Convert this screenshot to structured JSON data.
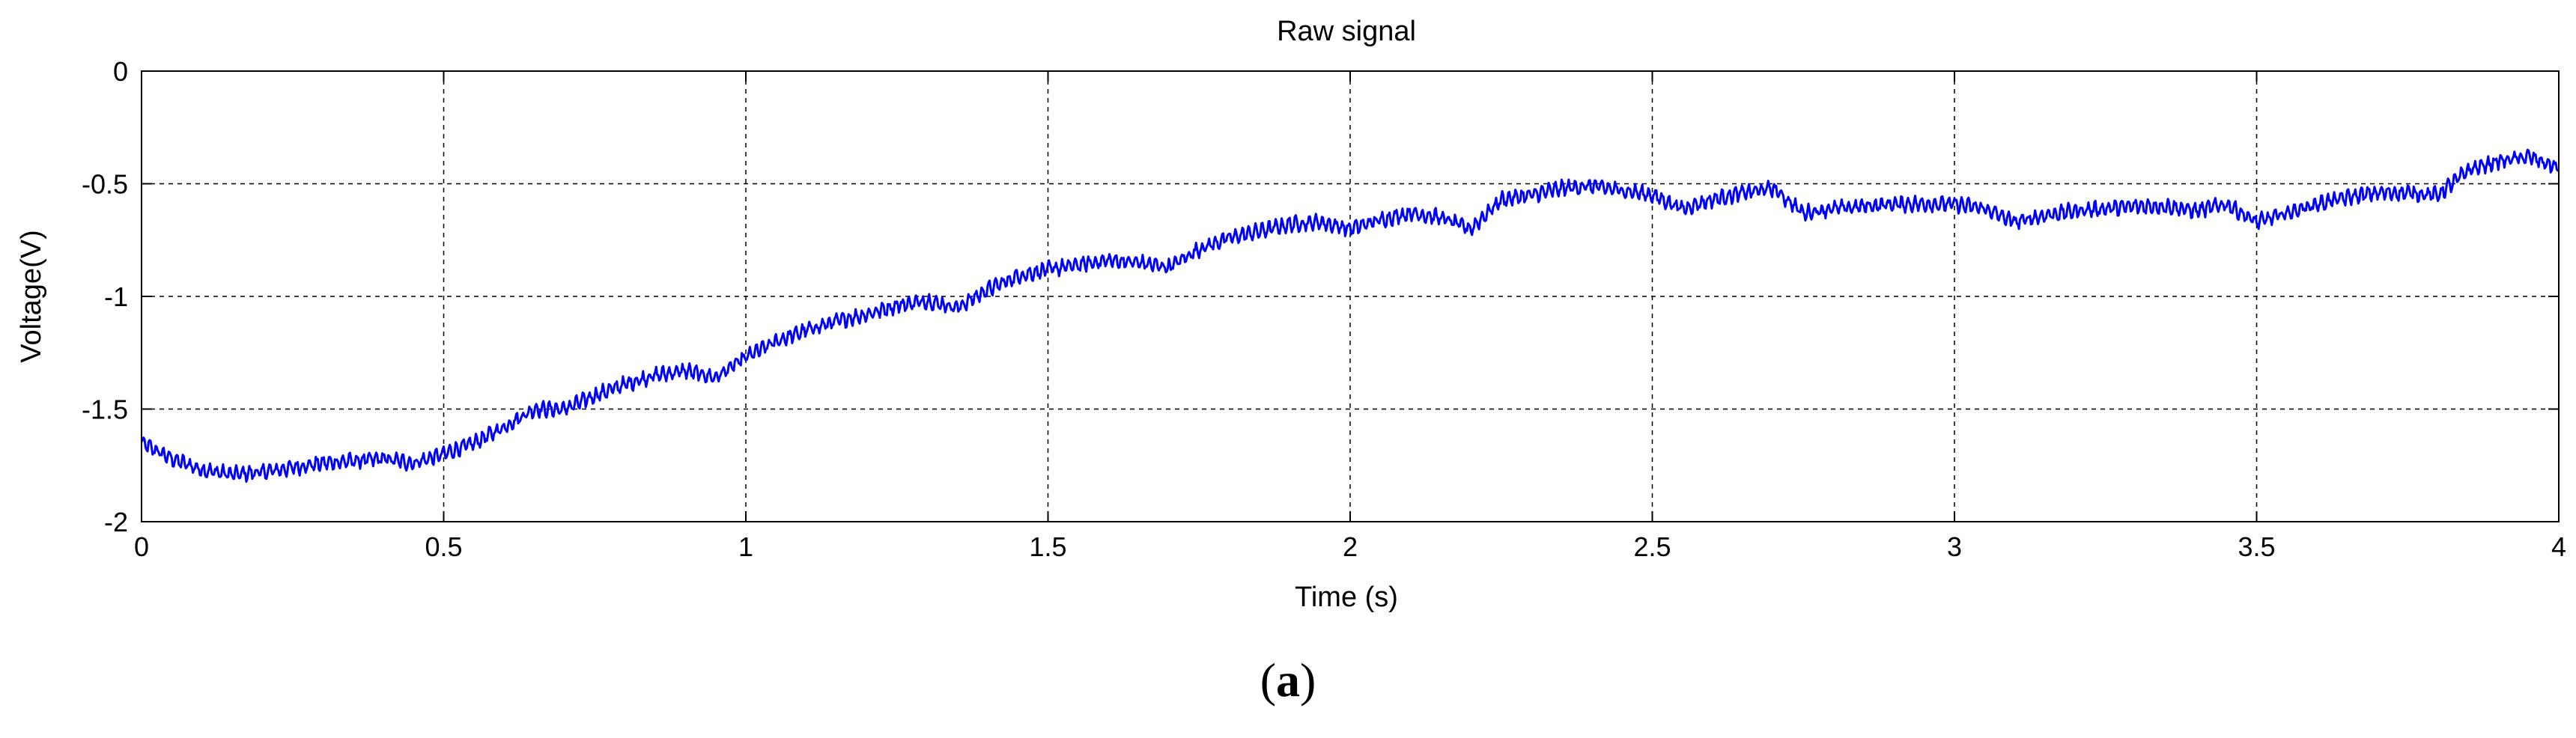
{
  "chart_data": {
    "type": "line",
    "title": "Raw signal",
    "xlabel": "Time (s)",
    "ylabel": "Voltage(V)",
    "xlim": [
      0,
      4
    ],
    "ylim": [
      -2,
      0
    ],
    "x_ticks": [
      "0",
      "0.5",
      "1",
      "1.5",
      "2",
      "2.5",
      "3",
      "3.5",
      "4"
    ],
    "y_ticks": [
      "0",
      "-0.5",
      "-1",
      "-1.5",
      "-2"
    ],
    "grid": true,
    "line_color": "#0000ff",
    "series": [
      {
        "x": [
          0,
          0.05,
          0.1,
          0.15,
          0.2,
          0.25,
          0.3,
          0.35,
          0.4,
          0.45,
          0.5,
          0.55,
          0.6,
          0.65,
          0.7,
          0.75,
          0.8,
          0.85,
          0.9,
          0.95,
          1.0,
          1.05,
          1.1,
          1.15,
          1.2,
          1.25,
          1.3,
          1.35,
          1.4,
          1.45,
          1.5,
          1.55,
          1.6,
          1.65,
          1.7,
          1.75,
          1.8,
          1.85,
          1.9,
          1.95,
          2.0,
          2.05,
          2.1,
          2.15,
          2.2,
          2.25,
          2.3,
          2.35,
          2.4,
          2.45,
          2.5,
          2.55,
          2.6,
          2.65,
          2.7,
          2.75,
          2.8,
          2.85,
          2.9,
          2.95,
          3.0,
          3.05,
          3.1,
          3.15,
          3.2,
          3.25,
          3.3,
          3.35,
          3.4,
          3.45,
          3.5,
          3.55,
          3.6,
          3.65,
          3.7,
          3.75,
          3.8,
          3.85,
          3.9,
          3.95,
          4.0
        ],
        "values": [
          -1.65,
          -1.72,
          -1.77,
          -1.79,
          -1.78,
          -1.76,
          -1.74,
          -1.73,
          -1.72,
          -1.74,
          -1.7,
          -1.65,
          -1.58,
          -1.5,
          -1.5,
          -1.44,
          -1.39,
          -1.35,
          -1.33,
          -1.36,
          -1.27,
          -1.2,
          -1.15,
          -1.11,
          -1.08,
          -1.04,
          -1.02,
          -1.05,
          -0.97,
          -0.91,
          -0.88,
          -0.86,
          -0.84,
          -0.85,
          -0.87,
          -0.79,
          -0.74,
          -0.71,
          -0.68,
          -0.67,
          -0.7,
          -0.66,
          -0.63,
          -0.65,
          -0.7,
          -0.57,
          -0.55,
          -0.52,
          -0.51,
          -0.53,
          -0.55,
          -0.61,
          -0.57,
          -0.54,
          -0.52,
          -0.63,
          -0.61,
          -0.6,
          -0.59,
          -0.59,
          -0.59,
          -0.61,
          -0.67,
          -0.64,
          -0.62,
          -0.61,
          -0.6,
          -0.6,
          -0.62,
          -0.59,
          -0.67,
          -0.63,
          -0.59,
          -0.56,
          -0.54,
          -0.54,
          -0.55,
          -0.44,
          -0.4,
          -0.38,
          -0.43
        ]
      }
    ]
  },
  "caption": {
    "open": "(",
    "label": "a",
    "close": ")"
  }
}
